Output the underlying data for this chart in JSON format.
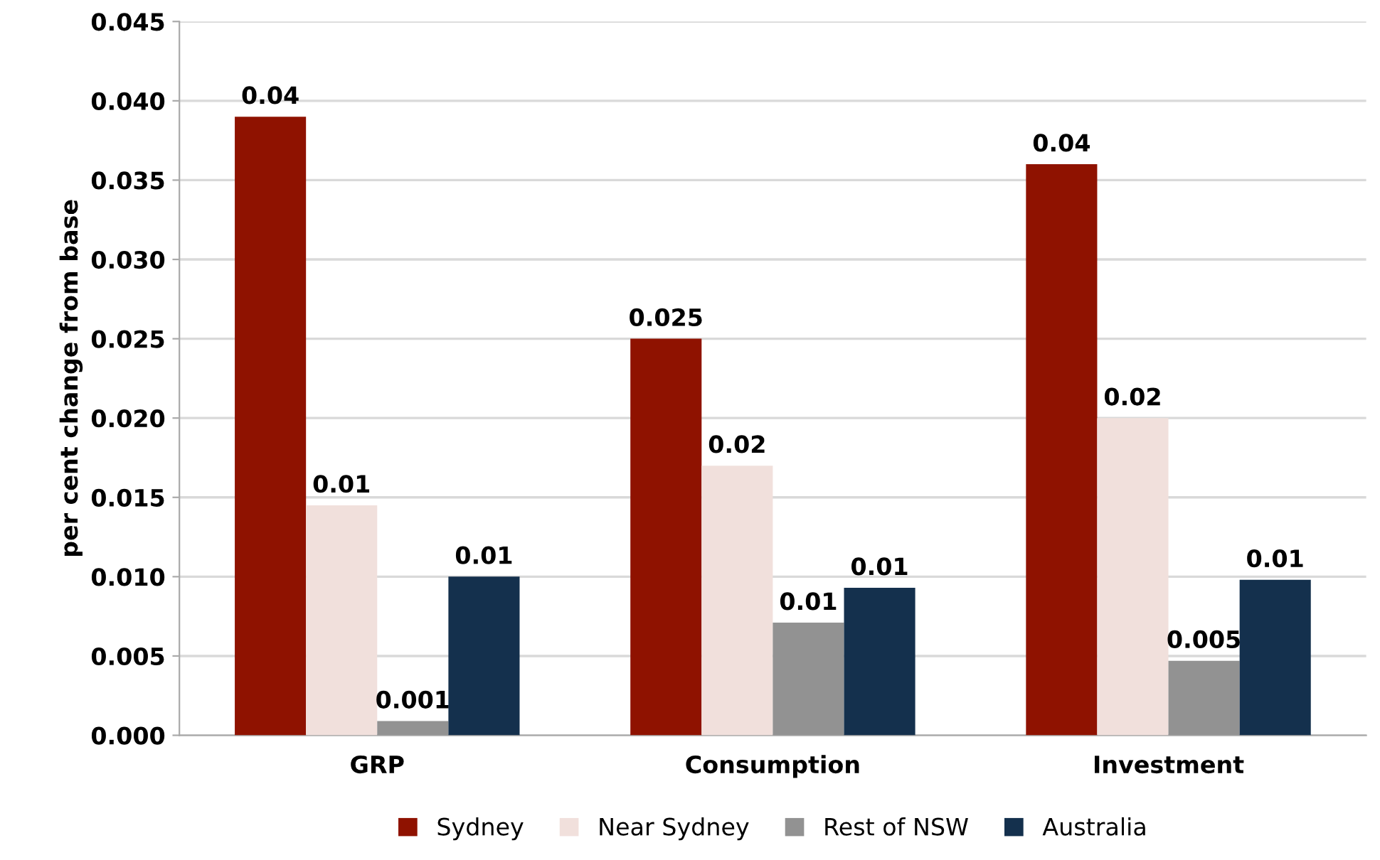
{
  "chart_data": {
    "type": "bar",
    "ylabel": "per cent change from base",
    "categories": [
      "GRP",
      "Consumption",
      "Investment"
    ],
    "series": [
      {
        "name": "Sydney",
        "color": "#8f1200",
        "values": [
          0.039,
          0.025,
          0.036
        ],
        "value_labels": [
          "0.04",
          "0.025",
          "0.04"
        ]
      },
      {
        "name": "Near Sydney",
        "color": "#f1e0dc",
        "values": [
          0.0145,
          0.017,
          0.02
        ],
        "value_labels": [
          "0.01",
          "0.02",
          "0.02"
        ]
      },
      {
        "name": "Rest of NSW",
        "color": "#929292",
        "values": [
          0.0009,
          0.0071,
          0.0047
        ],
        "value_labels": [
          "0.001",
          "0.01",
          "0.005"
        ]
      },
      {
        "name": "Australia",
        "color": "#14304d",
        "values": [
          0.01,
          0.0093,
          0.0098
        ],
        "value_labels": [
          "0.01",
          "0.01",
          "0.01"
        ]
      }
    ],
    "ylim": [
      0,
      0.045
    ],
    "yticks": [
      {
        "value": 0,
        "label": "0.000"
      },
      {
        "value": 0.005,
        "label": "0.005"
      },
      {
        "value": 0.01,
        "label": "0.010"
      },
      {
        "value": 0.015,
        "label": "0.015"
      },
      {
        "value": 0.02,
        "label": "0.020"
      },
      {
        "value": 0.025,
        "label": "0.025"
      },
      {
        "value": 0.03,
        "label": "0.030"
      },
      {
        "value": 0.035,
        "label": "0.035"
      },
      {
        "value": 0.04,
        "label": "0.040"
      },
      {
        "value": 0.045,
        "label": "0.045"
      }
    ],
    "grid": "y",
    "legend": "bottom"
  }
}
